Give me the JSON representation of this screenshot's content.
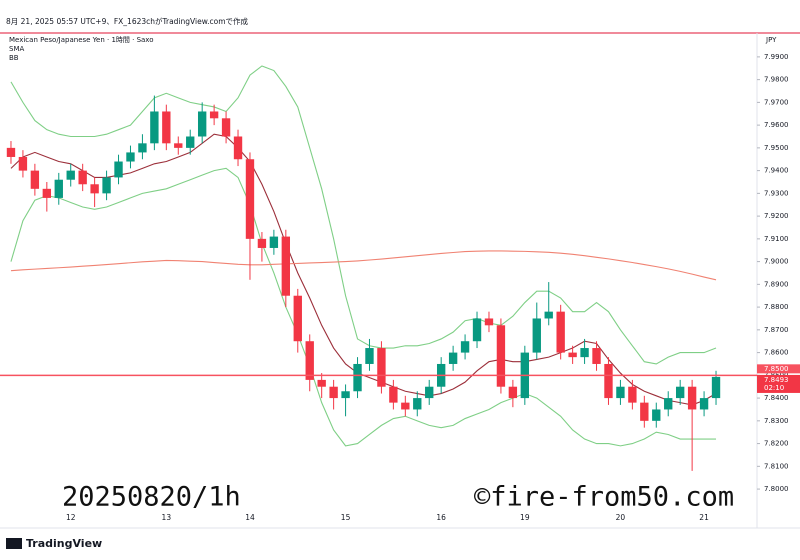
{
  "header": {
    "created": "8月 21, 2025 05:57 UTC+9、FX_1623chがTradingView.comで作成"
  },
  "footer": {
    "logo": "TradingView"
  },
  "chart_data": {
    "type": "candlestick",
    "title": "Mexican Peso/Japanese Yen · 1時間 · Saxo",
    "indicators": [
      "SMA",
      "BB"
    ],
    "y_axis_label": "JPY",
    "categories": [
      null,
      null,
      null,
      null,
      null,
      "12",
      null,
      null,
      null,
      null,
      null,
      null,
      null,
      "13",
      null,
      null,
      null,
      null,
      null,
      null,
      "14",
      null,
      null,
      null,
      null,
      null,
      null,
      null,
      "15",
      null,
      null,
      null,
      null,
      null,
      null,
      null,
      "16",
      null,
      null,
      null,
      null,
      null,
      null,
      "19",
      null,
      null,
      null,
      null,
      null,
      null,
      null,
      "20",
      null,
      null,
      null,
      null,
      null,
      null,
      "21",
      null
    ],
    "open": [
      7.95,
      7.946,
      7.94,
      7.932,
      7.928,
      7.936,
      7.94,
      7.934,
      7.93,
      7.937,
      7.944,
      7.948,
      7.952,
      7.966,
      7.952,
      7.95,
      7.955,
      7.966,
      7.963,
      7.955,
      7.945,
      7.91,
      7.906,
      7.911,
      7.885,
      7.865,
      7.848,
      7.845,
      7.84,
      7.843,
      7.855,
      7.862,
      7.845,
      7.838,
      7.835,
      7.84,
      7.845,
      7.855,
      7.86,
      7.865,
      7.875,
      7.872,
      7.845,
      7.84,
      7.86,
      7.875,
      7.878,
      7.86,
      7.858,
      7.862,
      7.855,
      7.84,
      7.845,
      7.838,
      7.83,
      7.835,
      7.84,
      7.845,
      7.835,
      7.84
    ],
    "high": [
      7.953,
      7.949,
      7.943,
      7.935,
      7.939,
      7.943,
      7.943,
      7.937,
      7.94,
      7.947,
      7.951,
      7.956,
      7.973,
      7.969,
      7.955,
      7.958,
      7.97,
      7.969,
      7.966,
      7.958,
      7.948,
      7.913,
      7.914,
      7.914,
      7.888,
      7.868,
      7.851,
      7.848,
      7.846,
      7.858,
      7.866,
      7.865,
      7.848,
      7.841,
      7.843,
      7.848,
      7.858,
      7.863,
      7.868,
      7.878,
      7.878,
      7.875,
      7.848,
      7.863,
      7.882,
      7.891,
      7.881,
      7.863,
      7.866,
      7.865,
      7.858,
      7.848,
      7.848,
      7.841,
      7.838,
      7.843,
      7.848,
      7.848,
      7.843,
      7.852
    ],
    "low": [
      7.943,
      7.937,
      7.929,
      7.922,
      7.925,
      7.933,
      7.931,
      7.924,
      7.927,
      7.934,
      7.941,
      7.945,
      7.949,
      7.949,
      7.947,
      7.947,
      7.952,
      7.96,
      7.952,
      7.942,
      7.892,
      7.9,
      7.903,
      7.88,
      7.86,
      7.843,
      7.84,
      7.835,
      7.832,
      7.84,
      7.852,
      7.842,
      7.835,
      7.832,
      7.832,
      7.837,
      7.842,
      7.852,
      7.857,
      7.862,
      7.869,
      7.842,
      7.836,
      7.837,
      7.857,
      7.872,
      7.857,
      7.855,
      7.855,
      7.852,
      7.837,
      7.837,
      7.835,
      7.827,
      7.827,
      7.832,
      7.837,
      7.808,
      7.832,
      7.837
    ],
    "close": [
      7.946,
      7.94,
      7.932,
      7.928,
      7.936,
      7.94,
      7.934,
      7.93,
      7.937,
      7.944,
      7.948,
      7.952,
      7.966,
      7.952,
      7.95,
      7.955,
      7.966,
      7.963,
      7.955,
      7.945,
      7.91,
      7.906,
      7.911,
      7.885,
      7.865,
      7.848,
      7.845,
      7.84,
      7.843,
      7.855,
      7.862,
      7.845,
      7.838,
      7.835,
      7.84,
      7.845,
      7.855,
      7.86,
      7.865,
      7.875,
      7.872,
      7.845,
      7.84,
      7.86,
      7.875,
      7.878,
      7.86,
      7.858,
      7.862,
      7.855,
      7.84,
      7.845,
      7.838,
      7.83,
      7.835,
      7.84,
      7.845,
      7.835,
      7.84,
      7.8493
    ],
    "up_color": "#089981",
    "down_color": "#f23645",
    "overlays": [
      {
        "color": "#9c2f3a",
        "values": [
          7.941,
          7.946,
          7.948,
          7.946,
          7.944,
          7.943,
          7.94,
          7.937,
          7.937,
          7.938,
          7.939,
          7.941,
          7.943,
          7.944,
          7.946,
          7.948,
          7.952,
          7.956,
          7.955,
          7.95,
          7.944,
          7.934,
          7.922,
          7.908,
          7.895,
          7.884,
          7.872,
          7.862,
          7.855,
          7.851,
          7.849,
          7.847,
          7.845,
          7.843,
          7.842,
          7.841,
          7.842,
          7.844,
          7.847,
          7.852,
          7.856,
          7.857,
          7.856,
          7.856,
          7.857,
          7.858,
          7.86,
          7.862,
          7.865,
          7.864,
          7.857,
          7.851,
          7.846,
          7.843,
          7.841,
          7.839,
          7.838,
          7.837,
          7.839,
          7.842
        ]
      },
      {
        "color": "#7fcf86",
        "values": [
          7.979,
          7.97,
          7.962,
          7.958,
          7.956,
          7.955,
          7.955,
          7.955,
          7.956,
          7.958,
          7.96,
          7.966,
          7.972,
          7.974,
          7.972,
          7.97,
          7.969,
          7.968,
          7.966,
          7.972,
          7.982,
          7.986,
          7.984,
          7.977,
          7.968,
          7.95,
          7.932,
          7.91,
          7.885,
          7.866,
          7.863,
          7.862,
          7.862,
          7.863,
          7.863,
          7.864,
          7.866,
          7.869,
          7.874,
          7.875,
          7.873,
          7.872,
          7.876,
          7.882,
          7.887,
          7.887,
          7.884,
          7.878,
          7.878,
          7.882,
          7.878,
          7.87,
          7.863,
          7.856,
          7.855,
          7.858,
          7.86,
          7.86,
          7.86,
          7.862
        ]
      },
      {
        "color": "#7fcf86",
        "values": [
          7.9,
          7.918,
          7.927,
          7.929,
          7.928,
          7.926,
          7.924,
          7.923,
          7.924,
          7.926,
          7.928,
          7.93,
          7.931,
          7.932,
          7.934,
          7.936,
          7.938,
          7.94,
          7.941,
          7.937,
          7.925,
          7.908,
          7.895,
          7.88,
          7.868,
          7.854,
          7.838,
          7.826,
          7.819,
          7.82,
          7.824,
          7.828,
          7.831,
          7.832,
          7.83,
          7.828,
          7.827,
          7.828,
          7.831,
          7.833,
          7.835,
          7.838,
          7.84,
          7.842,
          7.84,
          7.836,
          7.832,
          7.826,
          7.822,
          7.82,
          7.82,
          7.819,
          7.82,
          7.822,
          7.825,
          7.824,
          7.822,
          7.822,
          7.822,
          7.822
        ]
      },
      {
        "color": "#f08272",
        "values": [
          7.896,
          7.8964,
          7.8967,
          7.897,
          7.8973,
          7.8976,
          7.898,
          7.8983,
          7.8987,
          7.8991,
          7.8995,
          7.8999,
          7.9002,
          7.9005,
          7.9004,
          7.9002,
          7.9,
          7.8996,
          7.8992,
          7.8988,
          7.8986,
          7.8986,
          7.8988,
          7.899,
          7.8992,
          7.8994,
          7.8996,
          7.8998,
          7.9,
          7.9003,
          7.9007,
          7.9011,
          7.9016,
          7.9021,
          7.9026,
          7.9031,
          7.9036,
          7.904,
          7.9044,
          7.9046,
          7.9047,
          7.9047,
          7.9046,
          7.9045,
          7.9043,
          7.9041,
          7.9037,
          7.9032,
          7.9026,
          7.9019,
          7.9012,
          7.9004,
          7.8996,
          7.8987,
          7.8978,
          7.8968,
          7.8957,
          7.8945,
          7.8932,
          7.892
        ]
      }
    ],
    "price_line": {
      "value": 7.85,
      "label": "7.8500",
      "color": "#f7525f"
    },
    "last_price": {
      "value": 7.8493,
      "label": "7.8493"
    },
    "countdown": "02:10",
    "ylim": [
      7.7908,
      8.0005
    ],
    "yticks": [
      {
        "value": 7.8,
        "label": "7.8000"
      },
      {
        "value": 7.81,
        "label": "7.8100"
      },
      {
        "value": 7.82,
        "label": "7.8200"
      },
      {
        "value": 7.83,
        "label": "7.8300"
      },
      {
        "value": 7.84,
        "label": "7.8400"
      },
      {
        "value": 7.85,
        "label": "7.8500"
      },
      {
        "value": 7.86,
        "label": "7.8600"
      },
      {
        "value": 7.87,
        "label": "7.8700"
      },
      {
        "value": 7.88,
        "label": "7.8800"
      },
      {
        "value": 7.89,
        "label": "7.8900"
      },
      {
        "value": 7.9,
        "label": "7.9000"
      },
      {
        "value": 7.91,
        "label": "7.9100"
      },
      {
        "value": 7.92,
        "label": "7.9200"
      },
      {
        "value": 7.93,
        "label": "7.9300"
      },
      {
        "value": 7.94,
        "label": "7.9400"
      },
      {
        "value": 7.95,
        "label": "7.9500"
      },
      {
        "value": 7.96,
        "label": "7.9600"
      },
      {
        "value": 7.97,
        "label": "7.9700"
      },
      {
        "value": 7.98,
        "label": "7.9800"
      },
      {
        "value": 7.99,
        "label": "7.9900"
      }
    ],
    "annotations": [
      "20250820/1h",
      "©fire-from50.com"
    ]
  }
}
